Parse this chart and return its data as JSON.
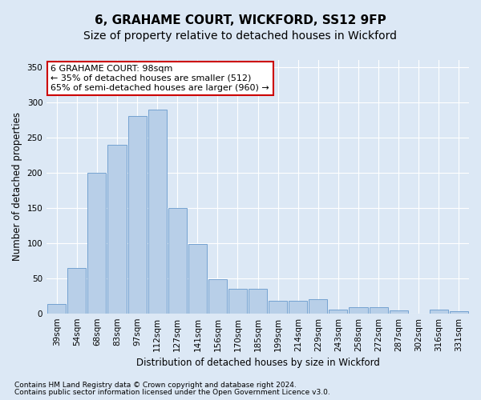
{
  "title": "6, GRAHAME COURT, WICKFORD, SS12 9FP",
  "subtitle": "Size of property relative to detached houses in Wickford",
  "xlabel": "Distribution of detached houses by size in Wickford",
  "ylabel": "Number of detached properties",
  "categories": [
    "39sqm",
    "54sqm",
    "68sqm",
    "83sqm",
    "97sqm",
    "112sqm",
    "127sqm",
    "141sqm",
    "156sqm",
    "170sqm",
    "185sqm",
    "199sqm",
    "214sqm",
    "229sqm",
    "243sqm",
    "258sqm",
    "272sqm",
    "287sqm",
    "302sqm",
    "316sqm",
    "331sqm"
  ],
  "values": [
    13,
    65,
    200,
    240,
    280,
    290,
    150,
    98,
    48,
    35,
    35,
    18,
    18,
    20,
    5,
    9,
    9,
    4,
    0,
    5,
    3
  ],
  "bar_color": "#b8cfe8",
  "bar_edge_color": "#6699cc",
  "bg_color": "#dce8f5",
  "annotation_text": "6 GRAHAME COURT: 98sqm\n← 35% of detached houses are smaller (512)\n65% of semi-detached houses are larger (960) →",
  "annotation_box_color": "#ffffff",
  "annotation_box_edge": "#cc0000",
  "footer1": "Contains HM Land Registry data © Crown copyright and database right 2024.",
  "footer2": "Contains public sector information licensed under the Open Government Licence v3.0.",
  "ylim": [
    0,
    360
  ],
  "yticks": [
    0,
    50,
    100,
    150,
    200,
    250,
    300,
    350
  ],
  "title_fontsize": 11,
  "subtitle_fontsize": 10,
  "axis_label_fontsize": 8.5,
  "tick_fontsize": 7.5,
  "annotation_fontsize": 8,
  "footer_fontsize": 6.5
}
